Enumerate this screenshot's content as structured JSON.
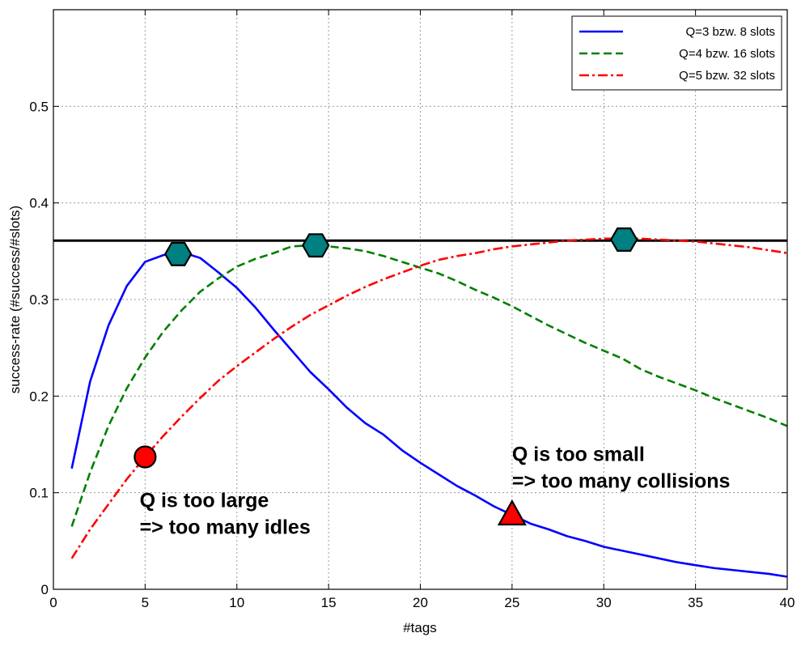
{
  "chart_data": {
    "type": "line",
    "xlabel": "#tags",
    "ylabel": "success-rate (#success/#slots)",
    "xlim": [
      0,
      40
    ],
    "ylim": [
      0,
      0.6
    ],
    "xticks": [
      0,
      5,
      10,
      15,
      20,
      25,
      30,
      35,
      40
    ],
    "yticks": [
      0,
      0.1,
      0.2,
      0.3,
      0.4,
      0.5
    ],
    "grid": true,
    "legend_position": "top-right",
    "x": [
      1,
      2,
      3,
      4,
      5,
      6,
      7,
      8,
      9,
      10,
      11,
      12,
      13,
      14,
      15,
      16,
      17,
      18,
      19,
      20,
      21,
      22,
      23,
      24,
      25,
      26,
      27,
      28,
      29,
      30,
      31,
      32,
      33,
      34,
      35,
      36,
      37,
      38,
      39,
      40
    ],
    "series": [
      {
        "name": "Q=3 bzw. 8 slots",
        "color": "#0000ff",
        "style": "solid",
        "values": [
          0.125,
          0.215,
          0.273,
          0.314,
          0.339,
          0.346,
          0.349,
          0.343,
          0.328,
          0.312,
          0.292,
          0.269,
          0.247,
          0.225,
          0.207,
          0.188,
          0.172,
          0.16,
          0.144,
          0.131,
          0.119,
          0.107,
          0.097,
          0.086,
          0.077,
          0.068,
          0.062,
          0.055,
          0.05,
          0.044,
          0.04,
          0.036,
          0.032,
          0.028,
          0.025,
          0.022,
          0.02,
          0.018,
          0.016,
          0.013
        ]
      },
      {
        "name": "Q=4 bzw. 16 slots",
        "color": "#007f00",
        "style": "dashed",
        "values": [
          0.065,
          0.121,
          0.169,
          0.208,
          0.24,
          0.267,
          0.289,
          0.308,
          0.322,
          0.334,
          0.342,
          0.348,
          0.355,
          0.356,
          0.355,
          0.353,
          0.35,
          0.345,
          0.339,
          0.333,
          0.327,
          0.319,
          0.31,
          0.302,
          0.293,
          0.283,
          0.273,
          0.264,
          0.255,
          0.247,
          0.239,
          0.228,
          0.22,
          0.213,
          0.206,
          0.198,
          0.191,
          0.184,
          0.177,
          0.169
        ]
      },
      {
        "name": "Q=5 bzw. 32 slots",
        "color": "#ff0000",
        "style": "dashdot",
        "values": [
          0.032,
          0.062,
          0.088,
          0.114,
          0.137,
          0.159,
          0.179,
          0.198,
          0.216,
          0.231,
          0.245,
          0.259,
          0.272,
          0.284,
          0.294,
          0.304,
          0.313,
          0.321,
          0.328,
          0.335,
          0.341,
          0.345,
          0.348,
          0.352,
          0.355,
          0.357,
          0.359,
          0.361,
          0.362,
          0.363,
          0.363,
          0.363,
          0.362,
          0.361,
          0.36,
          0.358,
          0.356,
          0.354,
          0.351,
          0.348
        ]
      }
    ],
    "reference_line": {
      "y": 0.361,
      "color": "#000000"
    },
    "markers": [
      {
        "shape": "hexagon",
        "x": 6.8,
        "y": 0.347,
        "color": "#008080"
      },
      {
        "shape": "hexagon",
        "x": 14.3,
        "y": 0.356,
        "color": "#008080"
      },
      {
        "shape": "hexagon",
        "x": 31.1,
        "y": 0.362,
        "color": "#008080"
      },
      {
        "shape": "circle",
        "x": 5.0,
        "y": 0.137,
        "color": "#ff0000"
      },
      {
        "shape": "triangle",
        "x": 25.0,
        "y": 0.077,
        "color": "#ff0000"
      }
    ],
    "annotations": [
      {
        "id": "too-large",
        "lines": [
          "Q is too large",
          "=> too many idles"
        ],
        "x": 4.7,
        "y": 0.085
      },
      {
        "id": "too-small",
        "lines": [
          "Q is too small",
          "=> too many collisions"
        ],
        "x": 25.0,
        "y": 0.133
      }
    ]
  }
}
